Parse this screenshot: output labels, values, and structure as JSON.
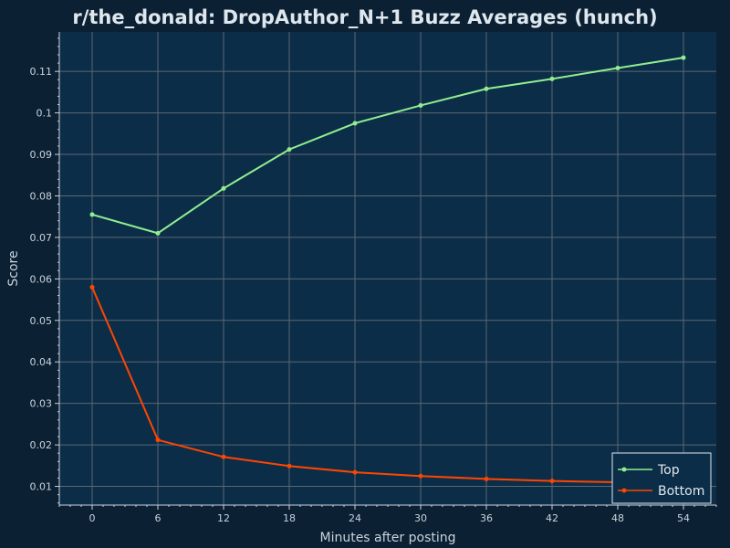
{
  "chart_data": {
    "type": "line",
    "title": "r/the_donald: DropAuthor_N+1 Buzz Averages (hunch)",
    "xlabel": "Minutes after posting",
    "ylabel": "Score",
    "x": [
      0,
      6,
      12,
      18,
      24,
      30,
      36,
      42,
      48,
      54
    ],
    "x_ticks": [
      "0",
      "6",
      "12",
      "18",
      "24",
      "30",
      "36",
      "42",
      "48",
      "54"
    ],
    "y_ticks": [
      "0.01",
      "0.02",
      "0.03",
      "0.04",
      "0.05",
      "0.06",
      "0.07",
      "0.08",
      "0.09",
      "0.1",
      "0.11"
    ],
    "y_tick_values": [
      0.01,
      0.02,
      0.03,
      0.04,
      0.05,
      0.06,
      0.07,
      0.08,
      0.09,
      0.1,
      0.11
    ],
    "xlim": [
      -3,
      57
    ],
    "ylim": [
      0.0055,
      0.1195
    ],
    "grid": true,
    "legend_position": "bottom-right",
    "series": [
      {
        "name": "Top",
        "color": "#90ee90",
        "values": [
          0.0755,
          0.071,
          0.0818,
          0.0912,
          0.0975,
          0.1018,
          0.1058,
          0.1082,
          0.1108,
          0.1133
        ]
      },
      {
        "name": "Bottom",
        "color": "#ff4500",
        "values": [
          0.058,
          0.0212,
          0.0171,
          0.0149,
          0.0134,
          0.0125,
          0.0118,
          0.0113,
          0.011,
          0.0106
        ]
      }
    ]
  }
}
